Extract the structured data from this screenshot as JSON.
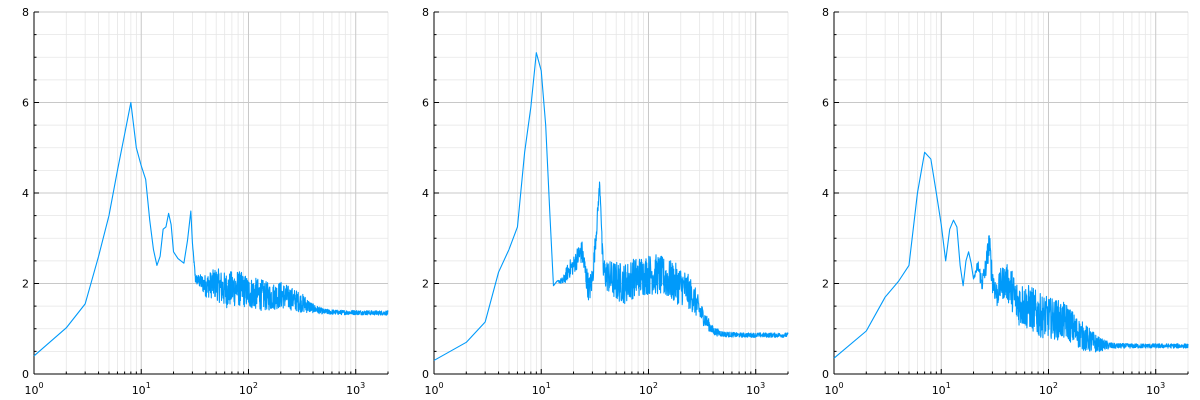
{
  "colors": {
    "series": "#009AFA",
    "background": "#ffffff"
  },
  "chart_data": [
    {
      "type": "line",
      "title": "",
      "xlabel": "",
      "ylabel": "",
      "x_scale": "log10",
      "xlim": [
        1,
        2000
      ],
      "ylim": [
        0,
        8
      ],
      "grid": true,
      "legend": "none",
      "y_ticks": [
        "0",
        "2",
        "4",
        "6",
        "8"
      ],
      "x_ticks": [
        {
          "base": "10",
          "exp": "0"
        },
        {
          "base": "10",
          "exp": "1"
        },
        {
          "base": "10",
          "exp": "2"
        },
        {
          "base": "10",
          "exp": "3"
        }
      ],
      "series": [
        {
          "x": [
            1,
            2,
            3,
            4,
            5,
            6,
            7,
            8,
            9,
            10,
            11,
            12,
            13,
            14,
            15,
            16,
            17,
            18,
            19,
            20,
            22,
            25,
            27,
            29,
            30,
            32,
            35,
            40,
            50,
            60,
            80,
            100,
            130,
            160,
            200,
            260,
            330,
            400,
            500,
            700,
            1000,
            1500,
            2000
          ],
          "y": [
            0.4,
            1.02,
            1.55,
            2.6,
            3.5,
            4.5,
            5.3,
            6.0,
            5.0,
            4.6,
            4.3,
            3.4,
            2.75,
            2.4,
            2.6,
            3.2,
            3.25,
            3.55,
            3.3,
            2.7,
            2.55,
            2.45,
            2.95,
            3.6,
            2.9,
            2.1,
            2.05,
            1.95,
            2.0,
            1.85,
            1.9,
            1.8,
            1.75,
            1.7,
            1.75,
            1.65,
            1.55,
            1.45,
            1.38,
            1.36,
            1.36,
            1.35,
            1.35
          ],
          "noise": [
            0,
            0,
            0,
            0,
            0,
            0,
            0,
            0,
            0,
            0,
            0,
            0,
            0,
            0,
            0,
            0,
            0,
            0,
            0,
            0,
            0,
            0,
            0,
            0,
            0,
            0.1,
            0.15,
            0.25,
            0.35,
            0.4,
            0.4,
            0.35,
            0.35,
            0.3,
            0.3,
            0.25,
            0.2,
            0.1,
            0.06,
            0.05,
            0.05,
            0.05,
            0.05
          ]
        }
      ]
    },
    {
      "type": "line",
      "title": "",
      "xlabel": "",
      "ylabel": "",
      "x_scale": "log10",
      "xlim": [
        1,
        2000
      ],
      "ylim": [
        0,
        8
      ],
      "grid": true,
      "legend": "none",
      "y_ticks": [
        "0",
        "2",
        "4",
        "6",
        "8"
      ],
      "x_ticks": [
        {
          "base": "10",
          "exp": "0"
        },
        {
          "base": "10",
          "exp": "1"
        },
        {
          "base": "10",
          "exp": "2"
        },
        {
          "base": "10",
          "exp": "3"
        }
      ],
      "series": [
        {
          "x": [
            1,
            2,
            3,
            4,
            5,
            6,
            7,
            8,
            9,
            10,
            11,
            12,
            13,
            14,
            16,
            18,
            20,
            22,
            24,
            26,
            28,
            30,
            33,
            35,
            36,
            37,
            38,
            40,
            45,
            50,
            60,
            70,
            80,
            100,
            120,
            150,
            180,
            220,
            260,
            300,
            350,
            400,
            500,
            700,
            1000,
            1500,
            2000
          ],
          "y": [
            0.3,
            0.7,
            1.15,
            2.25,
            2.75,
            3.25,
            4.9,
            5.9,
            7.1,
            6.7,
            5.5,
            3.6,
            1.95,
            2.05,
            2.05,
            2.3,
            2.4,
            2.6,
            2.7,
            2.2,
            1.85,
            2.1,
            3.3,
            4.2,
            3.7,
            2.7,
            2.3,
            2.2,
            2.1,
            2.05,
            2.0,
            2.1,
            2.15,
            2.2,
            2.2,
            2.1,
            2.0,
            1.9,
            1.7,
            1.4,
            1.15,
            0.95,
            0.88,
            0.86,
            0.86,
            0.86,
            0.86
          ],
          "noise": [
            0,
            0,
            0,
            0,
            0,
            0,
            0,
            0,
            0,
            0,
            0,
            0,
            0,
            0,
            0.1,
            0.2,
            0.2,
            0.25,
            0.25,
            0.3,
            0.3,
            0.3,
            0.2,
            0.1,
            0.1,
            0.25,
            0.3,
            0.35,
            0.4,
            0.45,
            0.45,
            0.45,
            0.45,
            0.45,
            0.45,
            0.45,
            0.45,
            0.4,
            0.35,
            0.25,
            0.15,
            0.1,
            0.06,
            0.05,
            0.05,
            0.05,
            0.05
          ]
        }
      ]
    },
    {
      "type": "line",
      "title": "",
      "xlabel": "",
      "ylabel": "",
      "x_scale": "log10",
      "xlim": [
        1,
        2000
      ],
      "ylim": [
        0,
        8
      ],
      "grid": true,
      "legend": "none",
      "y_ticks": [
        "0",
        "2",
        "4",
        "6",
        "8"
      ],
      "x_ticks": [
        {
          "base": "10",
          "exp": "0"
        },
        {
          "base": "10",
          "exp": "1"
        },
        {
          "base": "10",
          "exp": "2"
        },
        {
          "base": "10",
          "exp": "3"
        }
      ],
      "series": [
        {
          "x": [
            1,
            2,
            3,
            4,
            5,
            6,
            7,
            8,
            9,
            10,
            11,
            12,
            13,
            14,
            15,
            16,
            17,
            18,
            19,
            20,
            22,
            24,
            26,
            28,
            30,
            33,
            36,
            40,
            45,
            50,
            60,
            70,
            80,
            100,
            120,
            150,
            180,
            220,
            260,
            300,
            400,
            600,
            1000,
            1500,
            2000
          ],
          "y": [
            0.35,
            0.95,
            1.7,
            2.05,
            2.4,
            4.0,
            4.9,
            4.75,
            4.0,
            3.3,
            2.5,
            3.2,
            3.4,
            3.25,
            2.4,
            1.95,
            2.5,
            2.7,
            2.45,
            2.1,
            2.4,
            2.0,
            2.35,
            2.9,
            2.1,
            1.75,
            2.0,
            2.05,
            1.9,
            1.6,
            1.5,
            1.45,
            1.3,
            1.25,
            1.2,
            1.15,
            0.95,
            0.8,
            0.7,
            0.65,
            0.62,
            0.62,
            0.62,
            0.62,
            0.62
          ],
          "noise": [
            0,
            0,
            0,
            0,
            0,
            0,
            0,
            0,
            0,
            0,
            0,
            0,
            0,
            0,
            0,
            0,
            0,
            0,
            0,
            0,
            0.15,
            0.2,
            0.25,
            0.3,
            0.3,
            0.3,
            0.35,
            0.4,
            0.45,
            0.5,
            0.5,
            0.5,
            0.5,
            0.45,
            0.45,
            0.4,
            0.35,
            0.3,
            0.25,
            0.15,
            0.06,
            0.05,
            0.05,
            0.05,
            0.05
          ]
        }
      ]
    }
  ]
}
